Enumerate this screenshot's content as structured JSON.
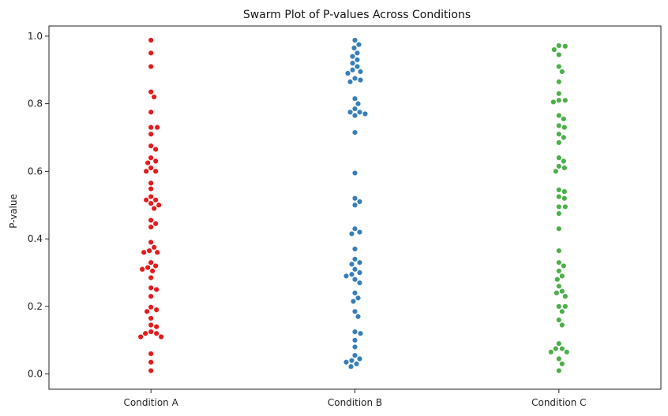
{
  "chart_data": {
    "type": "scatter",
    "title": "Swarm Plot of P-values Across Conditions",
    "xlabel": "",
    "ylabel": "P-value",
    "categories": [
      "Condition A",
      "Condition B",
      "Condition C"
    ],
    "ylim": [
      -0.045,
      1.03
    ],
    "yticks": [
      "0.0",
      "0.2",
      "0.4",
      "0.6",
      "0.8",
      "1.0"
    ],
    "grid": false,
    "series": [
      {
        "color": "#e41a1c",
        "values": [
          0.988,
          0.95,
          0.91,
          0.835,
          0.82,
          0.775,
          0.73,
          0.73,
          0.71,
          0.675,
          0.665,
          0.64,
          0.63,
          0.625,
          0.61,
          0.6,
          0.6,
          0.565,
          0.548,
          0.525,
          0.515,
          0.515,
          0.505,
          0.5,
          0.49,
          0.455,
          0.445,
          0.435,
          0.39,
          0.375,
          0.365,
          0.36,
          0.36,
          0.33,
          0.32,
          0.315,
          0.31,
          0.305,
          0.285,
          0.255,
          0.25,
          0.23,
          0.198,
          0.19,
          0.185,
          0.165,
          0.145,
          0.14,
          0.125,
          0.12,
          0.12,
          0.11,
          0.11,
          0.06,
          0.035,
          0.01
        ]
      },
      {
        "color": "#377eb8",
        "values": [
          0.988,
          0.975,
          0.965,
          0.95,
          0.94,
          0.93,
          0.92,
          0.91,
          0.9,
          0.895,
          0.89,
          0.875,
          0.87,
          0.865,
          0.815,
          0.8,
          0.785,
          0.775,
          0.775,
          0.77,
          0.765,
          0.715,
          0.595,
          0.52,
          0.51,
          0.5,
          0.43,
          0.42,
          0.415,
          0.37,
          0.34,
          0.33,
          0.325,
          0.31,
          0.3,
          0.295,
          0.29,
          0.28,
          0.27,
          0.24,
          0.225,
          0.215,
          0.185,
          0.17,
          0.125,
          0.12,
          0.1,
          0.08,
          0.055,
          0.045,
          0.04,
          0.035,
          0.03,
          0.022
        ]
      },
      {
        "color": "#4daf4a",
        "values": [
          0.972,
          0.97,
          0.96,
          0.945,
          0.91,
          0.895,
          0.865,
          0.83,
          0.81,
          0.81,
          0.805,
          0.765,
          0.755,
          0.735,
          0.73,
          0.71,
          0.7,
          0.685,
          0.64,
          0.63,
          0.615,
          0.61,
          0.6,
          0.545,
          0.54,
          0.525,
          0.52,
          0.495,
          0.495,
          0.475,
          0.43,
          0.365,
          0.33,
          0.32,
          0.305,
          0.29,
          0.28,
          0.26,
          0.245,
          0.24,
          0.23,
          0.2,
          0.2,
          0.185,
          0.16,
          0.145,
          0.09,
          0.075,
          0.075,
          0.065,
          0.065,
          0.045,
          0.03,
          0.01
        ]
      }
    ]
  }
}
